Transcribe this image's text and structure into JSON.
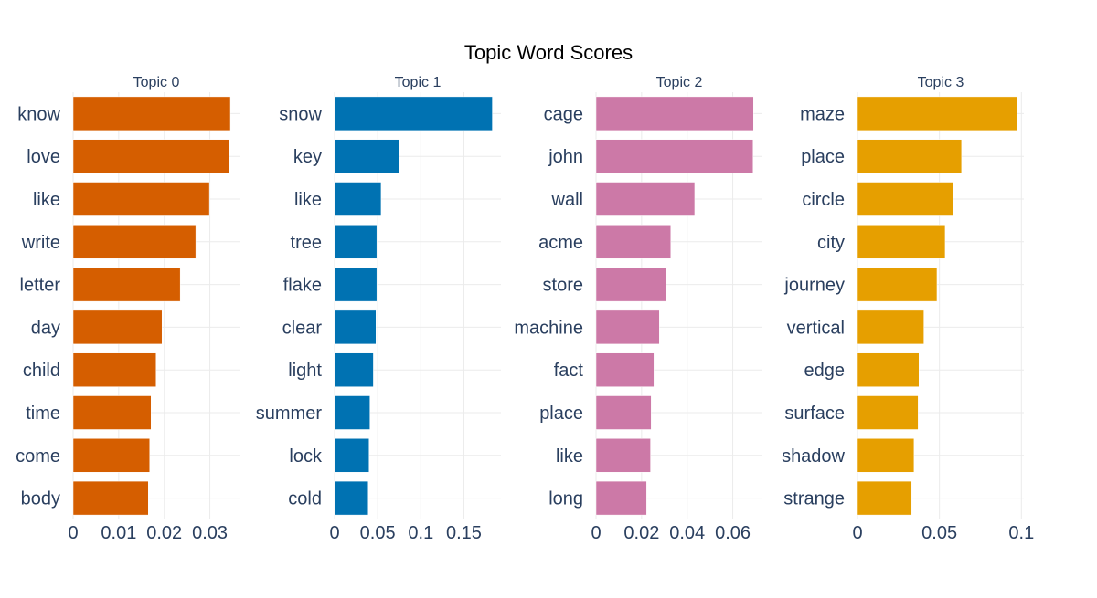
{
  "title": "Topic Word Scores",
  "chart_data": [
    {
      "type": "bar",
      "orientation": "horizontal",
      "title": "Topic 0",
      "color": "#D55E00",
      "categories": [
        "know",
        "love",
        "like",
        "write",
        "letter",
        "day",
        "child",
        "time",
        "come",
        "body"
      ],
      "values": [
        0.0345,
        0.0342,
        0.0299,
        0.0269,
        0.0235,
        0.0195,
        0.0182,
        0.0171,
        0.0168,
        0.0165
      ],
      "xlim": [
        0,
        0.0365
      ],
      "xticks": [
        0,
        0.01,
        0.02,
        0.03
      ],
      "xticklabels": [
        "0",
        "0.01",
        "0.02",
        "0.03"
      ],
      "grid": true
    },
    {
      "type": "bar",
      "orientation": "horizontal",
      "title": "Topic 1",
      "color": "#0072B2",
      "categories": [
        "snow",
        "key",
        "like",
        "tree",
        "flake",
        "clear",
        "light",
        "summer",
        "lock",
        "cold"
      ],
      "values": [
        0.183,
        0.075,
        0.054,
        0.049,
        0.049,
        0.048,
        0.045,
        0.041,
        0.04,
        0.039
      ],
      "xlim": [
        0,
        0.193
      ],
      "xticks": [
        0,
        0.05,
        0.1,
        0.15
      ],
      "xticklabels": [
        "0",
        "0.05",
        "0.1",
        "0.15"
      ],
      "grid": true
    },
    {
      "type": "bar",
      "orientation": "horizontal",
      "title": "Topic 2",
      "color": "#CC79A7",
      "categories": [
        "cage",
        "john",
        "wall",
        "acme",
        "store",
        "machine",
        "fact",
        "place",
        "like",
        "long"
      ],
      "values": [
        0.0691,
        0.0689,
        0.0433,
        0.0328,
        0.0308,
        0.0278,
        0.0254,
        0.0242,
        0.0239,
        0.0222
      ],
      "xlim": [
        0,
        0.073
      ],
      "xticks": [
        0,
        0.02,
        0.04,
        0.06
      ],
      "xticklabels": [
        "0",
        "0.02",
        "0.04",
        "0.06"
      ],
      "grid": true
    },
    {
      "type": "bar",
      "orientation": "horizontal",
      "title": "Topic 3",
      "color": "#E69F00",
      "categories": [
        "maze",
        "place",
        "circle",
        "city",
        "journey",
        "vertical",
        "edge",
        "surface",
        "shadow",
        "strange"
      ],
      "values": [
        0.0975,
        0.0635,
        0.0585,
        0.0535,
        0.0485,
        0.0405,
        0.0375,
        0.037,
        0.0345,
        0.033
      ],
      "xlim": [
        0,
        0.1015
      ],
      "xticks": [
        0,
        0.05,
        0.1
      ],
      "xticklabels": [
        "0",
        "0.05",
        "0.1"
      ],
      "grid": true
    }
  ]
}
